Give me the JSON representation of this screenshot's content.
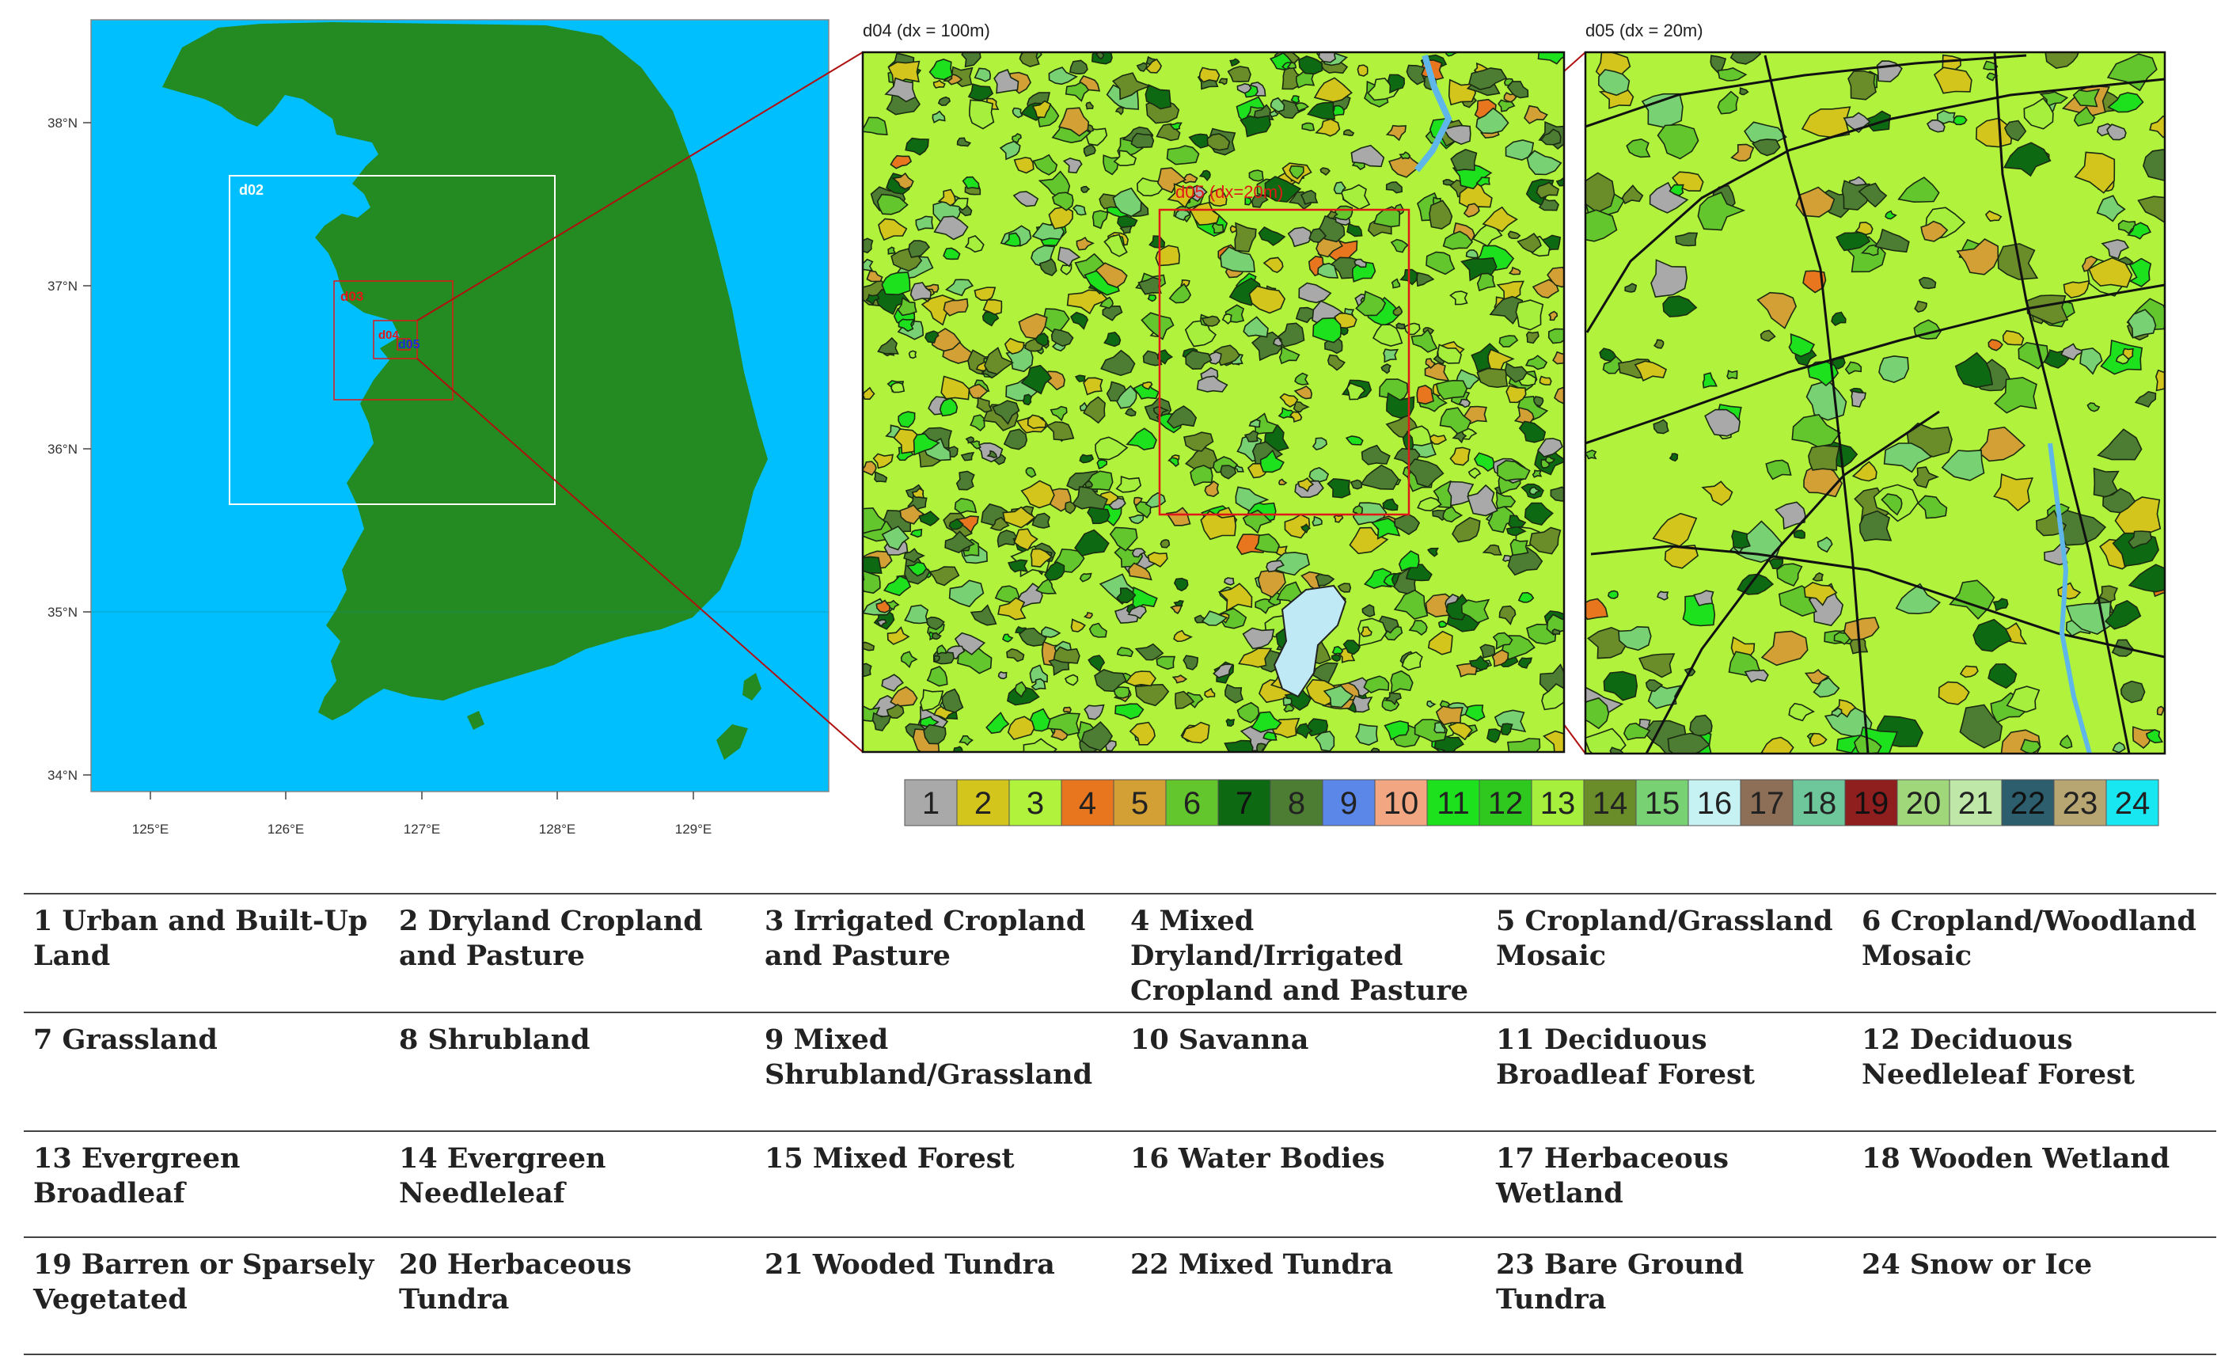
{
  "map": {
    "lat_labels": [
      "38°N",
      "37°N",
      "36°N",
      "35°N",
      "34°N"
    ],
    "lon_labels": [
      "125°E",
      "126°E",
      "127°E",
      "128°E",
      "129°E"
    ],
    "domains": [
      "d02",
      "d03",
      "d04",
      "d05"
    ],
    "inset_label": "d05 (dx=20m)"
  },
  "panels": {
    "d04_title": "d04 (dx = 100m)",
    "d05_title": "d05 (dx = 20m)"
  },
  "colors": {
    "ocean": "#00bfff",
    "land": "#238b21",
    "d02_box": "#ffffff",
    "nest_box": "#e01818",
    "d05_label": "#1e2bd6"
  },
  "colorbar": [
    {
      "label": "1",
      "color": "#a9a9a9"
    },
    {
      "label": "2",
      "color": "#d4c51c"
    },
    {
      "label": "3",
      "color": "#b0f23c"
    },
    {
      "label": "4",
      "color": "#e8761e"
    },
    {
      "label": "5",
      "color": "#d2a035"
    },
    {
      "label": "6",
      "color": "#62c62c"
    },
    {
      "label": "7",
      "color": "#0e6a12"
    },
    {
      "label": "8",
      "color": "#4d7d32"
    },
    {
      "label": "9",
      "color": "#5b87e8"
    },
    {
      "label": "10",
      "color": "#f2a782"
    },
    {
      "label": "11",
      "color": "#1ee11e"
    },
    {
      "label": "12",
      "color": "#2ec81e"
    },
    {
      "label": "13",
      "color": "#a6ef3c"
    },
    {
      "label": "14",
      "color": "#6a8d2a"
    },
    {
      "label": "15",
      "color": "#78d173"
    },
    {
      "label": "16",
      "color": "#c7f2f4"
    },
    {
      "label": "17",
      "color": "#8c6f56"
    },
    {
      "label": "18",
      "color": "#6dc79b"
    },
    {
      "label": "19",
      "color": "#8f1e1e"
    },
    {
      "label": "20",
      "color": "#a0d77b"
    },
    {
      "label": "21",
      "color": "#bfe8a8"
    },
    {
      "label": "22",
      "color": "#2c5e6e"
    },
    {
      "label": "23",
      "color": "#b8a672"
    },
    {
      "label": "24",
      "color": "#18e7f2"
    }
  ],
  "legend_rows": [
    [
      "1 Urban and Built-Up Land",
      "2 Dryland Cropland and Pasture",
      "3 Irrigated Cropland and Pasture",
      "4 Mixed Dryland/Irrigated Cropland and Pasture",
      "5 Cropland/Grassland Mosaic",
      "6 Cropland/Woodland Mosaic"
    ],
    [
      "7 Grassland",
      "8 Shrubland",
      "9 Mixed Shrubland/Grassland",
      "10 Savanna",
      "11 Deciduous Broadleaf Forest",
      "12 Deciduous Needleleaf Forest"
    ],
    [
      "13 Evergreen Broadleaf",
      "14 Evergreen Needleleaf",
      "15 Mixed Forest",
      "16 Water Bodies",
      "17 Herbaceous Wetland",
      "18 Wooden Wetland"
    ],
    [
      "19 Barren or Sparsely Vegetated",
      "20 Herbaceous Tundra",
      "21 Wooded Tundra",
      "22 Mixed Tundra",
      "23 Bare Ground Tundra",
      "24 Snow or Ice"
    ]
  ]
}
